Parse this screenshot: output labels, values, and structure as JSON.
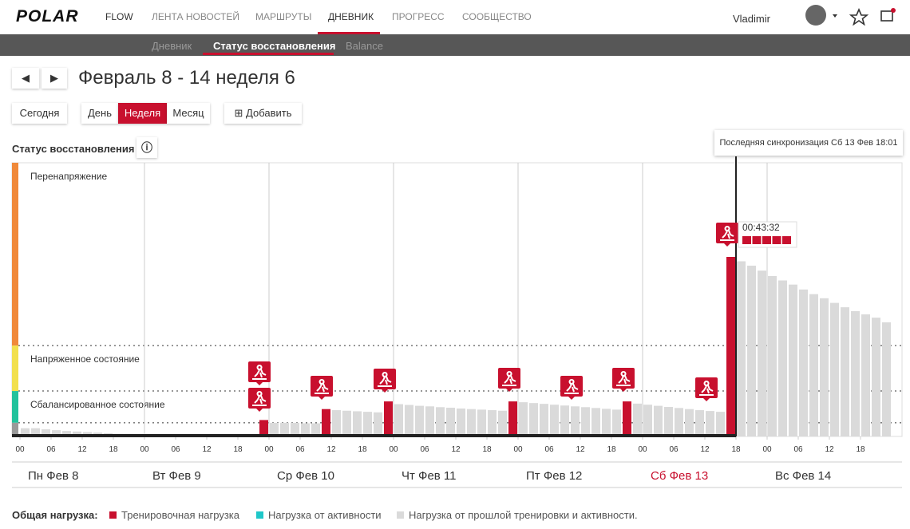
{
  "header": {
    "logo": "POLAR",
    "product": "FLOW",
    "nav": [
      "ЛЕНТА НОВОСТЕЙ",
      "МАРШРУТЫ",
      "ДНЕВНИК",
      "ПРОГРЕСС",
      "СООБЩЕСТВО"
    ],
    "user": "Vladimir"
  },
  "subnav": [
    "Дневник",
    "Статус восстановления",
    "Balance"
  ],
  "period_title": "Февраль 8 - 14 неделя 6",
  "buttons": {
    "today": "Сегодня",
    "views": [
      "День",
      "Неделя",
      "Месяц"
    ],
    "add": "Добавить"
  },
  "section_title": "Статус восстановления",
  "sync_tooltip": "Последняя синхронизация Сб 13 Фев 18:01",
  "chart_data": {
    "type": "bar",
    "xlim": [
      0,
      170
    ],
    "ylim": [
      0,
      100
    ],
    "xticks": [
      {
        "value": 0,
        "label": "00"
      },
      {
        "value": 6,
        "label": "06"
      },
      {
        "value": 12,
        "label": "12"
      },
      {
        "value": 18,
        "label": "18"
      },
      {
        "value": 24,
        "label": "00"
      },
      {
        "value": 30,
        "label": "06"
      },
      {
        "value": 36,
        "label": "12"
      },
      {
        "value": 42,
        "label": "18"
      },
      {
        "value": 48,
        "label": "00"
      },
      {
        "value": 54,
        "label": "06"
      },
      {
        "value": 60,
        "label": "12"
      },
      {
        "value": 66,
        "label": "18"
      },
      {
        "value": 72,
        "label": "00"
      },
      {
        "value": 78,
        "label": "06"
      },
      {
        "value": 84,
        "label": "12"
      },
      {
        "value": 90,
        "label": "18"
      },
      {
        "value": 96,
        "label": "00"
      },
      {
        "value": 102,
        "label": "06"
      },
      {
        "value": 108,
        "label": "12"
      },
      {
        "value": 114,
        "label": "18"
      },
      {
        "value": 120,
        "label": "00"
      },
      {
        "value": 126,
        "label": "06"
      },
      {
        "value": 132,
        "label": "12"
      },
      {
        "value": 138,
        "label": "18"
      },
      {
        "value": 144,
        "label": "00"
      },
      {
        "value": 150,
        "label": "06"
      },
      {
        "value": 156,
        "label": "12"
      },
      {
        "value": 162,
        "label": "18"
      }
    ],
    "day_labels": [
      "Пн Фев 8",
      "Вт Фев 9",
      "Ср Фев 10",
      "Чт Фев 11",
      "Пт Фев 12",
      "Сб Фев 13",
      "Вс Фев 14"
    ],
    "today_index": 5,
    "now_x": 138,
    "zones": [
      {
        "label": "Перенапряжение",
        "color": "#f0893a",
        "from": 33.2,
        "to": 100
      },
      {
        "label": "Напряженное состояние",
        "color": "#f2e04e",
        "from": 16.6,
        "to": 33.2
      },
      {
        "label": "Сбалансированное состояние",
        "color": "#22c29c",
        "from": 5,
        "to": 16.6
      }
    ],
    "annotation": "00:43:32",
    "legend_title": "Общая нагрузка:",
    "series": [
      {
        "name": "Тренировочная нагрузка",
        "color": "#c8102e",
        "x": [
          46,
          58,
          70,
          94,
          116,
          136
        ],
        "values": [
          6,
          10,
          12.8,
          12.8,
          12.8,
          65.6
        ]
      },
      {
        "name": "Нагрузка от активности",
        "color": "#1fc7c9",
        "x": [],
        "values": []
      },
      {
        "name": "Нагрузка от прошлой тренировки и активности.",
        "color": "#dadada",
        "x": [
          0,
          2,
          4,
          6,
          8,
          10,
          12,
          14,
          16,
          18,
          20,
          22,
          24,
          26,
          28,
          30,
          32,
          34,
          36,
          38,
          40,
          42,
          44,
          48,
          50,
          52,
          54,
          56,
          60,
          62,
          64,
          66,
          68,
          72,
          74,
          76,
          78,
          80,
          82,
          84,
          86,
          88,
          90,
          92,
          96,
          98,
          100,
          102,
          104,
          106,
          108,
          110,
          112,
          114,
          118,
          120,
          122,
          124,
          126,
          128,
          130,
          132,
          134,
          138,
          140,
          142,
          144,
          146,
          148,
          150,
          152,
          154,
          156,
          158,
          160,
          162,
          164,
          166
        ],
        "values": [
          3,
          3,
          2.6,
          2.3,
          2,
          1.8,
          1.6,
          1.4,
          1.2,
          1,
          1,
          0.8,
          0.8,
          0.6,
          0.6,
          0.5,
          0.5,
          0.4,
          0.4,
          0.3,
          0.3,
          0.3,
          0.3,
          5,
          5,
          5,
          4.8,
          4.8,
          9.6,
          9.4,
          9.2,
          9,
          8.8,
          11.8,
          11.5,
          11.2,
          11,
          10.7,
          10.5,
          10.2,
          10,
          9.8,
          9.6,
          9.4,
          12.5,
          12.2,
          11.9,
          11.6,
          11.3,
          11,
          10.7,
          10.4,
          10.1,
          9.8,
          12,
          11.6,
          11.2,
          10.8,
          10.4,
          10,
          9.6,
          9.3,
          9,
          64,
          62.4,
          60.6,
          58.6,
          57,
          55.5,
          53.7,
          52,
          50.5,
          48.8,
          47.2,
          45.8,
          44.6,
          43.4,
          41.7
        ]
      }
    ]
  }
}
